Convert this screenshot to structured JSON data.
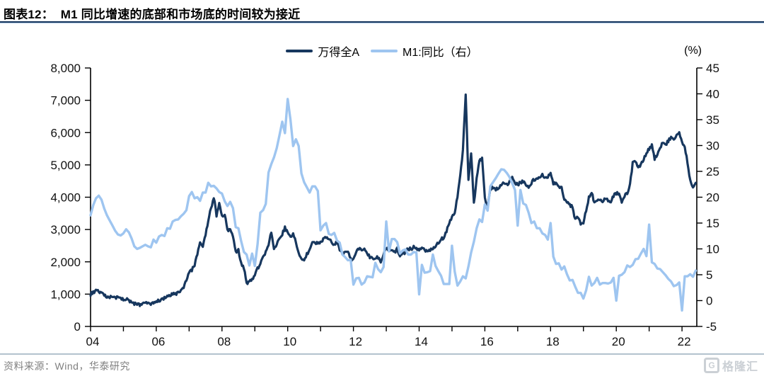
{
  "figure": {
    "title": "图表12：  M1 同比增速的底部和市场底的时间较为接近",
    "source_note": "资料来源：Wind，华泰研究",
    "watermark_icon": "G",
    "watermark_text": "格隆汇"
  },
  "colors": {
    "navy": "#17375E",
    "light_blue": "#9EC5F0",
    "title_rule": "#17375E",
    "footer_rule": "#B3C2CE",
    "source_text": "#808080",
    "watermark": "#CBD0D5",
    "axis": "#000000"
  },
  "chart_data": {
    "type": "line",
    "title": "M1 同比增速的底部和市场底的时间较为接近",
    "grid": false,
    "legend_position": "top-center",
    "x_start_year": 2004,
    "x_end_year": 2022.45,
    "points_per_year": 12,
    "x_tick_interval_years": 1,
    "x_label_interval_years": 2,
    "x_tick_labels": [
      "04",
      "06",
      "08",
      "10",
      "12",
      "14",
      "16",
      "18",
      "20",
      "22"
    ],
    "left_axis": {
      "series": "万得全A",
      "min": 0,
      "max": 8000,
      "step": 1000,
      "format": "thousands-comma"
    },
    "right_axis": {
      "series": "M1:同比（右）",
      "min": -5,
      "max": 45,
      "step": 5,
      "unit": "(%)"
    },
    "series": [
      {
        "name": "万得全A",
        "axis": "left",
        "color": "#17375E",
        "monthly_values": [
          1000,
          1060,
          1100,
          1080,
          1020,
          960,
          940,
          910,
          930,
          890,
          880,
          860,
          830,
          860,
          800,
          760,
          700,
          660,
          680,
          720,
          730,
          700,
          690,
          720,
          760,
          800,
          820,
          880,
          960,
          950,
          990,
          1010,
          1040,
          1090,
          1200,
          1450,
          1650,
          1750,
          1900,
          2250,
          2600,
          2500,
          2850,
          3300,
          3650,
          4000,
          3450,
          3800,
          3400,
          3500,
          2950,
          3050,
          2800,
          2300,
          2350,
          1950,
          1800,
          1320,
          1380,
          1450,
          1600,
          1780,
          1980,
          2150,
          2300,
          2550,
          2950,
          2380,
          2550,
          2700,
          2850,
          3050,
          2900,
          2800,
          2850,
          2600,
          2250,
          2100,
          2000,
          2250,
          2350,
          2600,
          2600,
          2550,
          2600,
          2700,
          2750,
          2750,
          2600,
          2550,
          2600,
          2400,
          2250,
          2350,
          2300,
          2100,
          2050,
          2300,
          2400,
          2350,
          2400,
          2250,
          2150,
          2100,
          2100,
          2150,
          2000,
          2250,
          2400,
          2400,
          2350,
          2300,
          2400,
          2150,
          2250,
          2300,
          2400,
          2400,
          2450,
          2400,
          2350,
          2400,
          2350,
          2350,
          2350,
          2400,
          2500,
          2600,
          2700,
          2750,
          2950,
          3200,
          3400,
          3550,
          4000,
          4700,
          5450,
          7200,
          4550,
          5400,
          3800,
          4600,
          5100,
          5200,
          3950,
          3700,
          4250,
          4300,
          4250,
          4300,
          4400,
          4450,
          4400,
          4450,
          4600,
          4450,
          4400,
          4450,
          4500,
          4400,
          4300,
          4450,
          4550,
          4600,
          4650,
          4700,
          4600,
          4650,
          4750,
          4400,
          4450,
          4300,
          4300,
          3950,
          3850,
          3750,
          3700,
          3300,
          3400,
          3150,
          3200,
          3600,
          4000,
          4150,
          3800,
          3900,
          3950,
          3850,
          3950,
          3900,
          3850,
          4050,
          4100,
          4150,
          3880,
          4050,
          4100,
          4400,
          5050,
          5100,
          4950,
          5000,
          5200,
          5350,
          5500,
          5600,
          5200,
          5300,
          5500,
          5700,
          5600,
          5750,
          5850,
          5800,
          5950,
          6030,
          5700,
          5550,
          5100,
          4500,
          4350,
          4450
        ]
      },
      {
        "name": "M1:同比（右）",
        "axis": "right",
        "color": "#9EC5F0",
        "monthly_values": [
          16.5,
          18.5,
          19.8,
          20.3,
          19.5,
          17.8,
          16.5,
          15.5,
          14.5,
          13.5,
          12.8,
          12.6,
          13.0,
          13.8,
          13.2,
          12.0,
          10.5,
          10.0,
          10.2,
          10.5,
          10.8,
          10.5,
          10.3,
          11.8,
          11.2,
          12.4,
          12.7,
          12.5,
          14.0,
          13.9,
          15.3,
          15.6,
          15.7,
          16.3,
          16.8,
          17.5,
          20.2,
          21.0,
          19.8,
          20.0,
          19.3,
          20.9,
          20.9,
          22.8,
          22.1,
          22.2,
          21.7,
          21.0,
          20.7,
          19.2,
          18.3,
          19.1,
          17.9,
          14.2,
          14.0,
          11.5,
          9.4,
          8.9,
          6.8,
          9.1,
          6.7,
          10.9,
          17.0,
          17.5,
          18.7,
          24.8,
          26.4,
          27.7,
          29.5,
          32.0,
          34.6,
          32.4,
          39.0,
          35.0,
          29.9,
          31.2,
          29.9,
          24.6,
          22.9,
          21.9,
          20.9,
          22.1,
          22.1,
          21.2,
          13.6,
          14.5,
          15.0,
          12.9,
          12.7,
          13.1,
          11.6,
          11.2,
          8.9,
          8.4,
          7.8,
          7.9,
          3.1,
          4.3,
          4.4,
          3.1,
          3.5,
          4.7,
          4.6,
          4.5,
          7.3,
          6.1,
          5.5,
          6.5,
          15.3,
          9.5,
          11.9,
          11.9,
          11.3,
          9.1,
          9.7,
          9.9,
          8.9,
          8.9,
          9.4,
          9.3,
          1.2,
          6.9,
          5.4,
          5.5,
          5.7,
          8.9,
          6.7,
          5.7,
          4.8,
          3.2,
          3.2,
          3.2,
          10.6,
          5.6,
          2.9,
          3.7,
          4.7,
          4.3,
          6.6,
          9.3,
          11.4,
          14.0,
          15.7,
          15.2,
          18.6,
          17.4,
          22.1,
          22.9,
          23.7,
          24.6,
          25.4,
          25.3,
          24.7,
          23.9,
          22.7,
          21.4,
          14.5,
          21.4,
          18.8,
          18.5,
          17.0,
          15.0,
          15.3,
          14.0,
          14.0,
          13.0,
          12.7,
          11.8,
          15.0,
          8.5,
          7.1,
          7.2,
          6.0,
          6.6,
          5.1,
          3.9,
          4.0,
          2.7,
          1.5,
          1.5,
          0.4,
          2.0,
          4.6,
          2.9,
          3.4,
          4.4,
          3.1,
          3.4,
          3.4,
          3.3,
          3.5,
          4.4,
          0.0,
          4.8,
          5.0,
          5.5,
          6.8,
          6.5,
          6.9,
          8.0,
          8.1,
          9.1,
          10.0,
          8.6,
          14.7,
          7.4,
          7.1,
          6.2,
          6.1,
          5.5,
          4.9,
          4.2,
          3.7,
          2.8,
          3.0,
          3.5,
          -1.9,
          4.7,
          4.7,
          5.1,
          4.6,
          5.8
        ]
      }
    ]
  }
}
